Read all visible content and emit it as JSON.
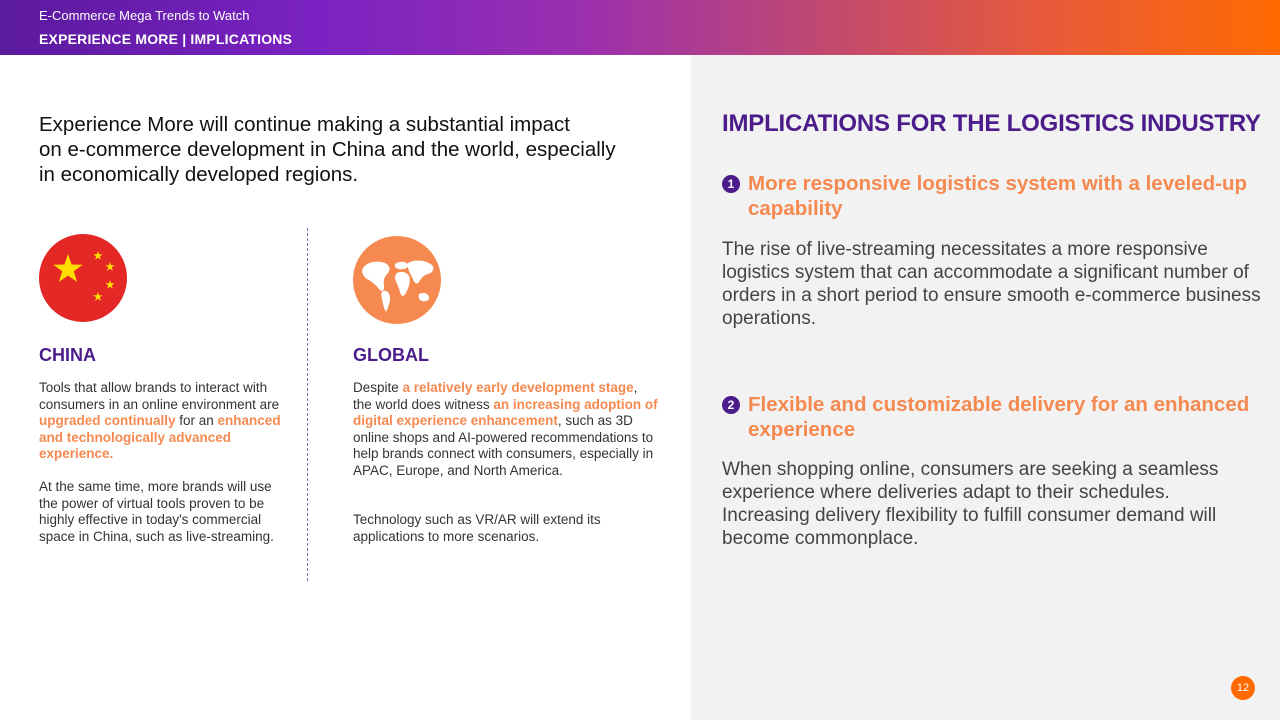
{
  "header": {
    "subtitle": "E-Commerce Mega Trends to Watch",
    "title": "EXPERIENCE MORE | IMPLICATIONS"
  },
  "intro": {
    "line1": "Experience More will continue making a substantial impact",
    "line2": "on e-commerce development in China and the world, especially",
    "line3": "in economically developed regions."
  },
  "china": {
    "icon": "china-flag-icon",
    "title": "CHINA",
    "p1": {
      "a": "Tools that allow brands to interact with consumers in an online environment are ",
      "b": "upgraded continually",
      "c": " for an ",
      "d": "enhanced and technologically advanced experience."
    },
    "p2": "At the same time, more brands will use the power of virtual tools proven to be highly effective in today's commercial space in China, such as live-streaming."
  },
  "global": {
    "icon": "world-map-icon",
    "title": "GLOBAL",
    "p1": {
      "a": "Despite ",
      "b": "a relatively early development stage",
      "c": ", the world does witness ",
      "d": "an increasing adoption of digital experience enhancement",
      "e": ", such as 3D online shops and AI-powered recommendations to help brands connect with consumers, especially in APAC, Europe, and North America."
    },
    "p2": "Technology such as VR/AR will extend its applications to more scenarios."
  },
  "implications": {
    "title": "IMPLICATIONS FOR THE LOGISTICS INDUSTRY",
    "items": [
      {
        "number": "1",
        "heading": "More responsive logistics system with a leveled-up capability",
        "text": "The rise of live-streaming necessitates a more responsive logistics system that can accommodate a significant number of orders in a short period to ensure smooth e-commerce business operations."
      },
      {
        "number": "2",
        "heading": "Flexible and customizable delivery for an enhanced experience",
        "text": "When shopping online, consumers are seeking a seamless experience where deliveries adapt to their schedules. Increasing delivery flexibility to fulfill consumer demand will become commonplace."
      }
    ]
  },
  "page_number": "12",
  "colors": {
    "purple": "#4b1c8a",
    "orange": "#f5894f",
    "accent": "#ff6a00",
    "flag_red": "#e32826",
    "star_yellow": "#ffde00"
  }
}
